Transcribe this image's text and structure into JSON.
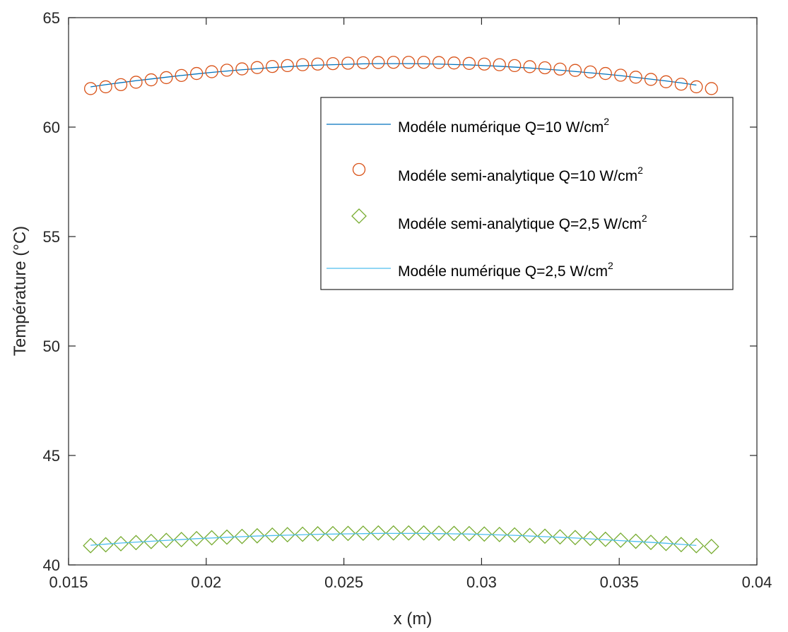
{
  "chart_data": {
    "type": "line",
    "title": "",
    "xlabel": "x (m)",
    "ylabel": "Température (°C)",
    "xlim": [
      0.015,
      0.04
    ],
    "ylim": [
      40,
      65
    ],
    "xticks": [
      0.015,
      0.02,
      0.025,
      0.03,
      0.035,
      0.04
    ],
    "xtick_labels": [
      "0.015",
      "0.02",
      "0.025",
      "0.03",
      "0.035",
      "0.04"
    ],
    "yticks": [
      40,
      45,
      50,
      55,
      60,
      65
    ],
    "ytick_labels": [
      "40",
      "45",
      "50",
      "55",
      "60",
      "65"
    ],
    "grid": false,
    "legend_position": "upper-right",
    "x_start": 0.0158,
    "x_step": 0.00055,
    "series": [
      {
        "name": "Modéle numérique Q=10 W/cm",
        "name_sup": "2",
        "style": "line",
        "color": "#0072BD",
        "values": [
          61.84,
          61.94,
          62.03,
          62.12,
          62.2,
          62.28,
          62.36,
          62.43,
          62.5,
          62.56,
          62.62,
          62.67,
          62.72,
          62.76,
          62.8,
          62.83,
          62.85,
          62.87,
          62.89,
          62.9,
          62.9,
          62.9,
          62.89,
          62.88,
          62.86,
          62.84,
          62.81,
          62.78,
          62.74,
          62.7,
          62.65,
          62.6,
          62.54,
          62.48,
          62.42,
          62.35,
          62.27,
          62.19,
          62.11,
          62.02,
          61.92
        ]
      },
      {
        "name": "Modéle semi-analytique Q=10 W/cm",
        "name_sup": "2",
        "style": "circle",
        "color": "#D95319",
        "values": [
          61.76,
          61.84,
          61.94,
          62.05,
          62.16,
          62.26,
          62.36,
          62.45,
          62.53,
          62.6,
          62.66,
          62.72,
          62.77,
          62.81,
          62.85,
          62.88,
          62.9,
          62.92,
          62.94,
          62.95,
          62.96,
          62.96,
          62.96,
          62.95,
          62.93,
          62.91,
          62.88,
          62.85,
          62.81,
          62.76,
          62.71,
          62.65,
          62.59,
          62.52,
          62.45,
          62.37,
          62.28,
          62.18,
          62.07,
          61.96,
          61.84,
          61.76
        ]
      },
      {
        "name": "Modéle semi-analytique  Q=2,5 W/cm",
        "name_sup": "2",
        "style": "diamond",
        "color": "#77AC30",
        "values": [
          40.88,
          40.92,
          40.97,
          41.02,
          41.07,
          41.12,
          41.16,
          41.2,
          41.24,
          41.27,
          41.3,
          41.33,
          41.36,
          41.38,
          41.4,
          41.42,
          41.43,
          41.44,
          41.45,
          41.46,
          41.46,
          41.46,
          41.46,
          41.45,
          41.44,
          41.43,
          41.41,
          41.39,
          41.37,
          41.34,
          41.31,
          41.28,
          41.25,
          41.21,
          41.17,
          41.13,
          41.08,
          41.03,
          40.98,
          40.93,
          40.88,
          40.84
        ]
      },
      {
        "name": "Modéle numérique Q=2,5 W/cm",
        "name_sup": "2",
        "style": "line",
        "color": "#4DBEEE",
        "values": [
          40.9,
          40.95,
          41.0,
          41.04,
          41.08,
          41.12,
          41.16,
          41.2,
          41.23,
          41.26,
          41.29,
          41.32,
          41.34,
          41.36,
          41.38,
          41.4,
          41.41,
          41.42,
          41.43,
          41.44,
          41.44,
          41.44,
          41.44,
          41.43,
          41.42,
          41.41,
          41.39,
          41.37,
          41.35,
          41.32,
          41.29,
          41.26,
          41.23,
          41.19,
          41.15,
          41.11,
          41.07,
          41.03,
          40.99,
          40.94,
          40.89
        ]
      }
    ]
  }
}
